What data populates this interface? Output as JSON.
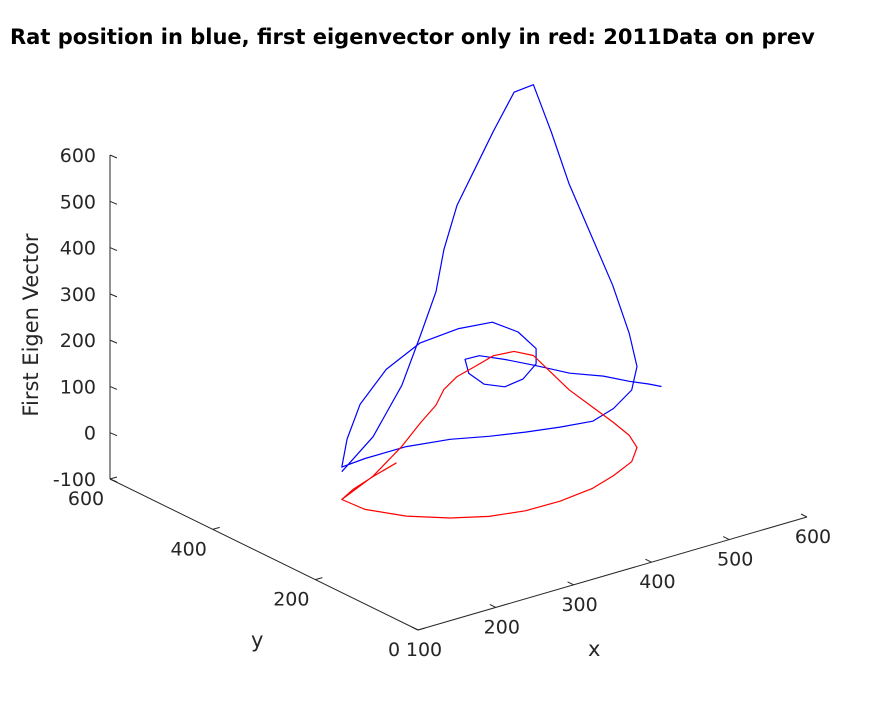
{
  "chart_data": {
    "type": "line",
    "title": "Rat position in blue, first eigenvector only in  red: 2011Data on prev",
    "xlabel": "x",
    "ylabel": "y",
    "zlabel": "First Eigen Vector",
    "x_ticks": [
      "100",
      "200",
      "300",
      "400",
      "500",
      "600"
    ],
    "y_ticks": [
      "0",
      "200",
      "400",
      "600"
    ],
    "z_ticks": [
      "-100",
      "0",
      "100",
      "200",
      "300",
      "400",
      "500",
      "600"
    ],
    "xlim": [
      100,
      600
    ],
    "ylim": [
      0,
      600
    ],
    "zlim": [
      -100,
      600
    ],
    "grid": false,
    "series": [
      {
        "color": "#0000ff",
        "x": [
          200,
          260,
          330,
          380,
          420,
          450,
          480,
          510,
          540,
          560,
          565,
          555,
          545,
          540,
          535,
          530,
          520,
          500,
          470,
          440,
          400,
          360,
          320,
          280,
          240,
          210,
          200,
          220,
          250,
          290,
          330,
          370,
          400,
          420,
          430,
          420,
          400,
          380,
          360,
          350,
          355,
          380,
          410,
          440,
          470,
          500,
          520,
          535,
          545
        ],
        "y": [
          300,
          330,
          380,
          420,
          450,
          480,
          500,
          510,
          520,
          510,
          480,
          430,
          380,
          330,
          280,
          240,
          210,
          190,
          180,
          175,
          178,
          185,
          195,
          210,
          235,
          270,
          300,
          320,
          340,
          350,
          345,
          330,
          310,
          290,
          270,
          255,
          250,
          255,
          265,
          280,
          295,
          305,
          300,
          285,
          265,
          245,
          225,
          210,
          200
        ],
        "z": [
          30,
          60,
          110,
          170,
          230,
          290,
          360,
          420,
          480,
          560,
          590,
          520,
          440,
          360,
          280,
          200,
          150,
          120,
          100,
          90,
          95,
          100,
          105,
          110,
          100,
          70,
          40,
          80,
          130,
          180,
          220,
          240,
          250,
          230,
          200,
          180,
          160,
          150,
          160,
          180,
          200,
          190,
          170,
          150,
          130,
          120,
          110,
          105,
          100
        ]
      },
      {
        "color": "#ff0000",
        "x": [
          200,
          260,
          330,
          380,
          420,
          450,
          480,
          510,
          540,
          560,
          565,
          555,
          545,
          540,
          535,
          530,
          520,
          500,
          470,
          440,
          400,
          360,
          320,
          280,
          240,
          210,
          200,
          225,
          260,
          300
        ],
        "y": [
          300,
          330,
          380,
          420,
          450,
          480,
          500,
          510,
          520,
          510,
          480,
          430,
          380,
          330,
          280,
          240,
          210,
          190,
          180,
          175,
          178,
          185,
          195,
          210,
          235,
          270,
          300,
          315,
          330,
          345
        ],
        "z": [
          -30,
          -25,
          -22,
          -18,
          -15,
          -12,
          -10,
          -8,
          -5,
          0,
          5,
          0,
          -5,
          -10,
          -15,
          -20,
          -25,
          -35,
          -45,
          -55,
          -65,
          -70,
          -68,
          -60,
          -50,
          -40,
          -30,
          -28,
          -26,
          -24
        ]
      }
    ]
  }
}
